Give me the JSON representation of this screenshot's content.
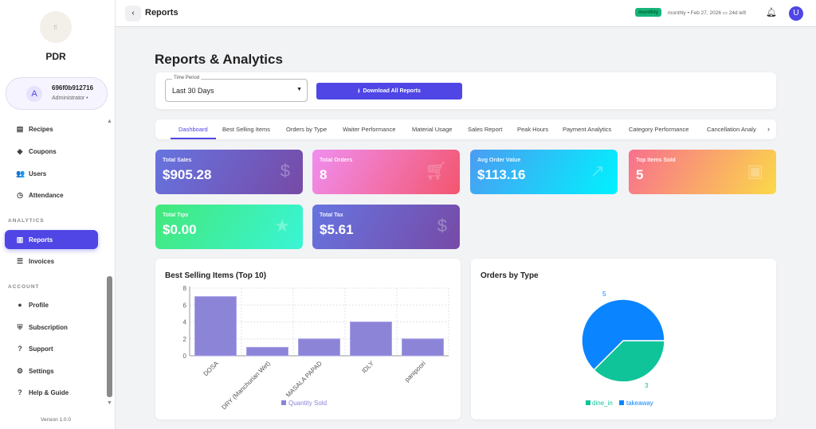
{
  "sidebar": {
    "brand": "PDR",
    "logo_text": "RESTAURANT",
    "user": {
      "initial": "A",
      "name": "696f0b912716",
      "role": "Administrator •"
    },
    "items": [
      {
        "label": "Recipes",
        "icon": "book-icon"
      },
      {
        "label": "Coupons",
        "icon": "tag-icon"
      },
      {
        "label": "Users",
        "icon": "users-icon"
      },
      {
        "label": "Attendance",
        "icon": "clock-icon"
      },
      {
        "label": "Reports",
        "icon": "chart-icon"
      },
      {
        "label": "Invoices",
        "icon": "list-icon"
      },
      {
        "label": "Profile",
        "icon": "person-icon"
      },
      {
        "label": "Subscription",
        "icon": "shield-icon"
      },
      {
        "label": "Support",
        "icon": "help-icon"
      },
      {
        "label": "Settings",
        "icon": "gear-icon"
      },
      {
        "label": "Help & Guide",
        "icon": "help-icon"
      }
    ],
    "sections": {
      "analytics": "ANALYTICS",
      "account": "ACCOUNT"
    },
    "version": "Version 1.0.0"
  },
  "header": {
    "title": "Reports",
    "plan_badge": "monthly",
    "plan_info": "monthly • Feb 27, 2026",
    "days_left": "24d left",
    "user_initial": "U"
  },
  "page": {
    "title": "Reports & Analytics",
    "time_period_label": "Time Period",
    "time_period": "Last 30 Days",
    "download": "Download All Reports"
  },
  "tabs": [
    "Dashboard",
    "Best Selling Items",
    "Orders by Type",
    "Waiter Performance",
    "Material Usage",
    "Sales Report",
    "Peak Hours",
    "Payment Analytics",
    "Category Performance",
    "Cancellation Analy"
  ],
  "stats": [
    {
      "label": "Total Sales",
      "value": "$905.28",
      "icon": "dollar-icon"
    },
    {
      "label": "Total Orders",
      "value": "8",
      "icon": "cart-icon"
    },
    {
      "label": "Avg Order Value",
      "value": "$113.16",
      "icon": "trending-up-icon"
    },
    {
      "label": "Top Items Sold",
      "value": "5",
      "icon": "archive-icon"
    },
    {
      "label": "Total Tips",
      "value": "$0.00",
      "icon": "star-icon"
    },
    {
      "label": "Total Tax",
      "value": "$5.61",
      "icon": "dollar-icon"
    }
  ],
  "chart_data": [
    {
      "type": "bar",
      "title": "Best Selling Items (Top 10)",
      "categories": [
        "DOSA",
        "DRY (Manchurian Wet)",
        "MASALA PAPAD",
        "IDLY",
        "panipoori"
      ],
      "series": [
        {
          "name": "Quantity Sold",
          "values": [
            7,
            1,
            2,
            4,
            2
          ]
        }
      ],
      "ylim": [
        0,
        8
      ],
      "yticks": [
        0,
        2,
        4,
        6,
        8
      ],
      "grid": true,
      "legend": "bottom",
      "color": "#8b84d7"
    },
    {
      "type": "pie",
      "title": "Orders by Type",
      "categories": [
        "dine_in",
        "takeaway"
      ],
      "values": [
        3,
        5
      ],
      "colors": [
        "#10c49a",
        "#0a84ff"
      ],
      "legend": "bottom"
    }
  ]
}
